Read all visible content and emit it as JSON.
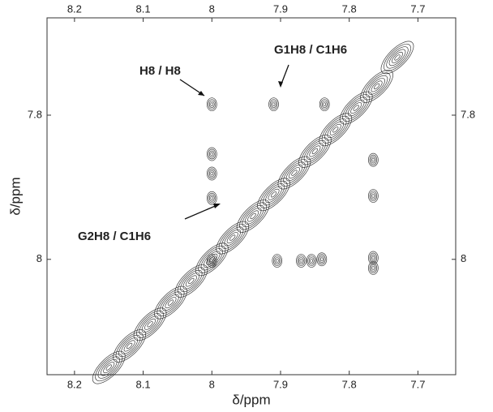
{
  "chart_data": {
    "type": "contour",
    "xlabel": "δ/ppm",
    "ylabel": "δ/ppm",
    "xlim": [
      8.24,
      7.645
    ],
    "ylim": [
      7.665,
      8.16
    ],
    "xticks": [
      8.2,
      8.1,
      8.0,
      7.9,
      7.8,
      7.7
    ],
    "yticks": [
      7.8,
      8.0
    ],
    "annotations": [
      "H8 / H8",
      "G1H8 / C1H6",
      "G2H8 / C1H6"
    ],
    "color": "#1a1a1a",
    "diagonal_x": [
      8.15,
      8.12,
      8.09,
      8.06,
      8.03,
      8.0,
      7.97,
      7.94,
      7.91,
      7.88,
      7.85,
      7.82,
      7.79,
      7.76,
      7.73
    ],
    "diagonal_y": [
      8.15,
      8.12,
      8.09,
      8.06,
      8.03,
      8.0,
      7.97,
      7.94,
      7.91,
      7.88,
      7.85,
      7.82,
      7.79,
      7.76,
      7.72
    ],
    "x": [
      8.0,
      7.91,
      7.836,
      8.0,
      8.0,
      8.0,
      7.765,
      7.765,
      8.0,
      7.905,
      7.87,
      7.855,
      7.84,
      7.765,
      7.765
    ],
    "y": [
      7.785,
      7.785,
      7.785,
      7.854,
      7.881,
      7.915,
      7.912,
      7.862,
      8.002,
      8.002,
      8.002,
      8.002,
      8.0,
      7.998,
      8.012
    ]
  }
}
